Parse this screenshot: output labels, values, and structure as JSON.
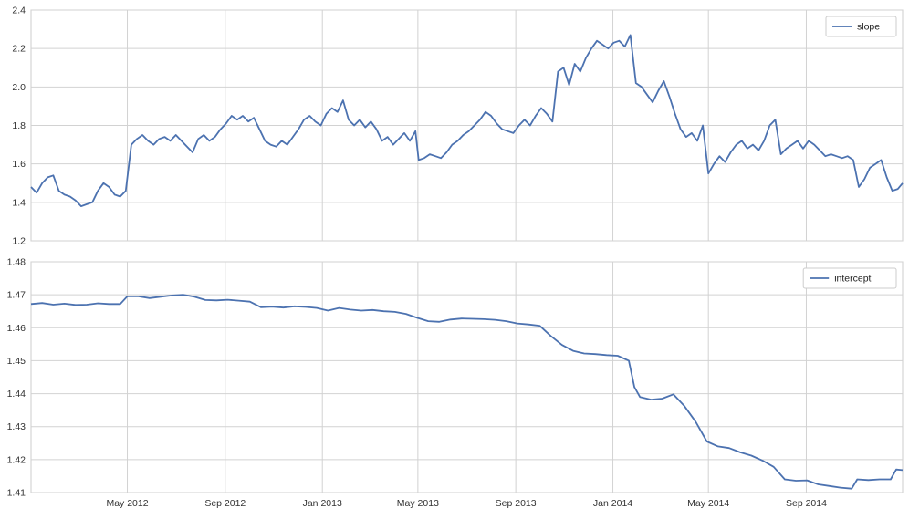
{
  "chart_data": [
    {
      "type": "line",
      "ylim": [
        1.2,
        2.4
      ],
      "y_ticks": [
        "1.2",
        "1.4",
        "1.6",
        "1.8",
        "2.0",
        "2.2",
        "2.4"
      ],
      "x_ticks": [
        "May 2012",
        "Sep 2012",
        "Jan 2013",
        "May 2013",
        "Sep 2013",
        "Jan 2014",
        "May 2014",
        "Sep 2014"
      ],
      "x_ticks_shown": false,
      "grid": true,
      "legend_position": "top-right",
      "x_range": [
        "2012-01-01",
        "2014-12-31"
      ],
      "series": [
        {
          "name": "slope",
          "color": "#4c72b0",
          "points": [
            [
              "2012-01-01",
              1.48
            ],
            [
              "2012-01-08",
              1.45
            ],
            [
              "2012-01-15",
              1.5
            ],
            [
              "2012-01-22",
              1.53
            ],
            [
              "2012-01-29",
              1.54
            ],
            [
              "2012-02-05",
              1.46
            ],
            [
              "2012-02-12",
              1.44
            ],
            [
              "2012-02-19",
              1.43
            ],
            [
              "2012-02-26",
              1.41
            ],
            [
              "2012-03-04",
              1.38
            ],
            [
              "2012-03-11",
              1.39
            ],
            [
              "2012-03-18",
              1.4
            ],
            [
              "2012-03-25",
              1.46
            ],
            [
              "2012-04-01",
              1.5
            ],
            [
              "2012-04-08",
              1.48
            ],
            [
              "2012-04-15",
              1.44
            ],
            [
              "2012-04-22",
              1.43
            ],
            [
              "2012-04-29",
              1.46
            ],
            [
              "2012-05-06",
              1.7
            ],
            [
              "2012-05-13",
              1.73
            ],
            [
              "2012-05-20",
              1.75
            ],
            [
              "2012-05-27",
              1.72
            ],
            [
              "2012-06-03",
              1.7
            ],
            [
              "2012-06-10",
              1.73
            ],
            [
              "2012-06-17",
              1.74
            ],
            [
              "2012-06-24",
              1.72
            ],
            [
              "2012-07-01",
              1.75
            ],
            [
              "2012-07-08",
              1.72
            ],
            [
              "2012-07-15",
              1.69
            ],
            [
              "2012-07-22",
              1.66
            ],
            [
              "2012-07-29",
              1.73
            ],
            [
              "2012-08-05",
              1.75
            ],
            [
              "2012-08-12",
              1.72
            ],
            [
              "2012-08-19",
              1.74
            ],
            [
              "2012-08-26",
              1.78
            ],
            [
              "2012-09-02",
              1.81
            ],
            [
              "2012-09-09",
              1.85
            ],
            [
              "2012-09-16",
              1.83
            ],
            [
              "2012-09-23",
              1.85
            ],
            [
              "2012-09-30",
              1.82
            ],
            [
              "2012-10-07",
              1.84
            ],
            [
              "2012-10-14",
              1.78
            ],
            [
              "2012-10-21",
              1.72
            ],
            [
              "2012-10-28",
              1.7
            ],
            [
              "2012-11-04",
              1.69
            ],
            [
              "2012-11-11",
              1.72
            ],
            [
              "2012-11-18",
              1.7
            ],
            [
              "2012-11-25",
              1.74
            ],
            [
              "2012-12-02",
              1.78
            ],
            [
              "2012-12-09",
              1.83
            ],
            [
              "2012-12-16",
              1.85
            ],
            [
              "2012-12-23",
              1.82
            ],
            [
              "2012-12-30",
              1.8
            ],
            [
              "2013-01-06",
              1.86
            ],
            [
              "2013-01-13",
              1.89
            ],
            [
              "2013-01-20",
              1.87
            ],
            [
              "2013-01-27",
              1.93
            ],
            [
              "2013-02-03",
              1.83
            ],
            [
              "2013-02-10",
              1.8
            ],
            [
              "2013-02-17",
              1.83
            ],
            [
              "2013-02-24",
              1.79
            ],
            [
              "2013-03-03",
              1.82
            ],
            [
              "2013-03-10",
              1.78
            ],
            [
              "2013-03-17",
              1.72
            ],
            [
              "2013-03-24",
              1.74
            ],
            [
              "2013-03-31",
              1.7
            ],
            [
              "2013-04-07",
              1.73
            ],
            [
              "2013-04-14",
              1.76
            ],
            [
              "2013-04-21",
              1.72
            ],
            [
              "2013-04-28",
              1.77
            ],
            [
              "2013-05-02",
              1.62
            ],
            [
              "2013-05-09",
              1.63
            ],
            [
              "2013-05-16",
              1.65
            ],
            [
              "2013-05-23",
              1.64
            ],
            [
              "2013-05-30",
              1.63
            ],
            [
              "2013-06-06",
              1.66
            ],
            [
              "2013-06-13",
              1.7
            ],
            [
              "2013-06-20",
              1.72
            ],
            [
              "2013-06-27",
              1.75
            ],
            [
              "2013-07-04",
              1.77
            ],
            [
              "2013-07-11",
              1.8
            ],
            [
              "2013-07-18",
              1.83
            ],
            [
              "2013-07-25",
              1.87
            ],
            [
              "2013-08-01",
              1.85
            ],
            [
              "2013-08-08",
              1.81
            ],
            [
              "2013-08-15",
              1.78
            ],
            [
              "2013-08-22",
              1.77
            ],
            [
              "2013-08-29",
              1.76
            ],
            [
              "2013-09-05",
              1.8
            ],
            [
              "2013-09-12",
              1.83
            ],
            [
              "2013-09-19",
              1.8
            ],
            [
              "2013-09-26",
              1.85
            ],
            [
              "2013-10-03",
              1.89
            ],
            [
              "2013-10-10",
              1.86
            ],
            [
              "2013-10-17",
              1.82
            ],
            [
              "2013-10-24",
              2.08
            ],
            [
              "2013-10-31",
              2.1
            ],
            [
              "2013-11-07",
              2.01
            ],
            [
              "2013-11-14",
              2.12
            ],
            [
              "2013-11-21",
              2.08
            ],
            [
              "2013-11-28",
              2.15
            ],
            [
              "2013-12-05",
              2.2
            ],
            [
              "2013-12-12",
              2.24
            ],
            [
              "2013-12-19",
              2.22
            ],
            [
              "2013-12-26",
              2.2
            ],
            [
              "2014-01-02",
              2.23
            ],
            [
              "2014-01-09",
              2.24
            ],
            [
              "2014-01-16",
              2.21
            ],
            [
              "2014-01-23",
              2.27
            ],
            [
              "2014-01-30",
              2.02
            ],
            [
              "2014-02-06",
              2.0
            ],
            [
              "2014-02-13",
              1.96
            ],
            [
              "2014-02-20",
              1.92
            ],
            [
              "2014-02-27",
              1.98
            ],
            [
              "2014-03-06",
              2.03
            ],
            [
              "2014-03-13",
              1.95
            ],
            [
              "2014-03-20",
              1.86
            ],
            [
              "2014-03-27",
              1.78
            ],
            [
              "2014-04-03",
              1.74
            ],
            [
              "2014-04-10",
              1.76
            ],
            [
              "2014-04-17",
              1.72
            ],
            [
              "2014-04-24",
              1.8
            ],
            [
              "2014-05-01",
              1.55
            ],
            [
              "2014-05-08",
              1.6
            ],
            [
              "2014-05-15",
              1.64
            ],
            [
              "2014-05-22",
              1.61
            ],
            [
              "2014-05-29",
              1.66
            ],
            [
              "2014-06-05",
              1.7
            ],
            [
              "2014-06-12",
              1.72
            ],
            [
              "2014-06-19",
              1.68
            ],
            [
              "2014-06-26",
              1.7
            ],
            [
              "2014-07-03",
              1.67
            ],
            [
              "2014-07-10",
              1.72
            ],
            [
              "2014-07-17",
              1.8
            ],
            [
              "2014-07-24",
              1.83
            ],
            [
              "2014-07-31",
              1.65
            ],
            [
              "2014-08-07",
              1.68
            ],
            [
              "2014-08-14",
              1.7
            ],
            [
              "2014-08-21",
              1.72
            ],
            [
              "2014-08-28",
              1.68
            ],
            [
              "2014-09-04",
              1.72
            ],
            [
              "2014-09-11",
              1.7
            ],
            [
              "2014-09-18",
              1.67
            ],
            [
              "2014-09-25",
              1.64
            ],
            [
              "2014-10-02",
              1.65
            ],
            [
              "2014-10-09",
              1.64
            ],
            [
              "2014-10-16",
              1.63
            ],
            [
              "2014-10-23",
              1.64
            ],
            [
              "2014-10-30",
              1.62
            ],
            [
              "2014-11-06",
              1.48
            ],
            [
              "2014-11-13",
              1.52
            ],
            [
              "2014-11-20",
              1.58
            ],
            [
              "2014-11-27",
              1.6
            ],
            [
              "2014-12-04",
              1.62
            ],
            [
              "2014-12-11",
              1.53
            ],
            [
              "2014-12-18",
              1.46
            ],
            [
              "2014-12-25",
              1.47
            ],
            [
              "2014-12-31",
              1.5
            ]
          ]
        }
      ]
    },
    {
      "type": "line",
      "ylim": [
        1.41,
        1.48
      ],
      "y_ticks": [
        "1.41",
        "1.42",
        "1.43",
        "1.44",
        "1.45",
        "1.46",
        "1.47",
        "1.48"
      ],
      "x_ticks": [
        "May 2012",
        "Sep 2012",
        "Jan 2013",
        "May 2013",
        "Sep 2013",
        "Jan 2014",
        "May 2014",
        "Sep 2014"
      ],
      "x_ticks_shown": true,
      "grid": true,
      "legend_position": "top-right",
      "x_range": [
        "2012-01-01",
        "2014-12-31"
      ],
      "series": [
        {
          "name": "intercept",
          "color": "#4c72b0",
          "points": [
            [
              "2012-01-01",
              1.4672
            ],
            [
              "2012-01-15",
              1.4675
            ],
            [
              "2012-01-29",
              1.467
            ],
            [
              "2012-02-12",
              1.4673
            ],
            [
              "2012-02-26",
              1.4669
            ],
            [
              "2012-03-11",
              1.467
            ],
            [
              "2012-03-25",
              1.4674
            ],
            [
              "2012-04-08",
              1.4672
            ],
            [
              "2012-04-22",
              1.4672
            ],
            [
              "2012-05-01",
              1.4695
            ],
            [
              "2012-05-15",
              1.4695
            ],
            [
              "2012-05-29",
              1.469
            ],
            [
              "2012-06-12",
              1.4694
            ],
            [
              "2012-06-26",
              1.4698
            ],
            [
              "2012-07-10",
              1.47
            ],
            [
              "2012-07-24",
              1.4694
            ],
            [
              "2012-08-07",
              1.4684
            ],
            [
              "2012-08-21",
              1.4683
            ],
            [
              "2012-09-04",
              1.4685
            ],
            [
              "2012-09-18",
              1.4682
            ],
            [
              "2012-10-02",
              1.4679
            ],
            [
              "2012-10-16",
              1.4662
            ],
            [
              "2012-10-30",
              1.4664
            ],
            [
              "2012-11-13",
              1.4661
            ],
            [
              "2012-11-27",
              1.4665
            ],
            [
              "2012-12-11",
              1.4663
            ],
            [
              "2012-12-25",
              1.466
            ],
            [
              "2013-01-08",
              1.4652
            ],
            [
              "2013-01-22",
              1.466
            ],
            [
              "2013-02-05",
              1.4655
            ],
            [
              "2013-02-19",
              1.4652
            ],
            [
              "2013-03-05",
              1.4654
            ],
            [
              "2013-03-19",
              1.465
            ],
            [
              "2013-04-02",
              1.4648
            ],
            [
              "2013-04-16",
              1.4642
            ],
            [
              "2013-04-30",
              1.463
            ],
            [
              "2013-05-14",
              1.462
            ],
            [
              "2013-05-28",
              1.4618
            ],
            [
              "2013-06-11",
              1.4625
            ],
            [
              "2013-06-25",
              1.4628
            ],
            [
              "2013-07-09",
              1.4627
            ],
            [
              "2013-07-23",
              1.4626
            ],
            [
              "2013-08-06",
              1.4624
            ],
            [
              "2013-08-20",
              1.462
            ],
            [
              "2013-09-03",
              1.4613
            ],
            [
              "2013-09-17",
              1.461
            ],
            [
              "2013-10-01",
              1.4606
            ],
            [
              "2013-10-15",
              1.4575
            ],
            [
              "2013-10-29",
              1.4548
            ],
            [
              "2013-11-12",
              1.453
            ],
            [
              "2013-11-26",
              1.4522
            ],
            [
              "2013-12-10",
              1.452
            ],
            [
              "2013-12-24",
              1.4517
            ],
            [
              "2014-01-07",
              1.4515
            ],
            [
              "2014-01-21",
              1.45
            ],
            [
              "2014-01-28",
              1.442
            ],
            [
              "2014-02-04",
              1.439
            ],
            [
              "2014-02-18",
              1.4382
            ],
            [
              "2014-03-04",
              1.4385
            ],
            [
              "2014-03-18",
              1.4398
            ],
            [
              "2014-04-01",
              1.4362
            ],
            [
              "2014-04-15",
              1.4315
            ],
            [
              "2014-04-29",
              1.4255
            ],
            [
              "2014-05-13",
              1.424
            ],
            [
              "2014-05-27",
              1.4235
            ],
            [
              "2014-06-10",
              1.4222
            ],
            [
              "2014-06-24",
              1.4212
            ],
            [
              "2014-07-08",
              1.4197
            ],
            [
              "2014-07-22",
              1.4178
            ],
            [
              "2014-08-05",
              1.414
            ],
            [
              "2014-08-19",
              1.4136
            ],
            [
              "2014-09-02",
              1.4137
            ],
            [
              "2014-09-16",
              1.4125
            ],
            [
              "2014-09-30",
              1.412
            ],
            [
              "2014-10-14",
              1.4115
            ],
            [
              "2014-10-28",
              1.4112
            ],
            [
              "2014-11-04",
              1.414
            ],
            [
              "2014-11-18",
              1.4138
            ],
            [
              "2014-12-02",
              1.414
            ],
            [
              "2014-12-16",
              1.414
            ],
            [
              "2014-12-23",
              1.417
            ],
            [
              "2014-12-31",
              1.4168
            ]
          ]
        }
      ]
    }
  ]
}
